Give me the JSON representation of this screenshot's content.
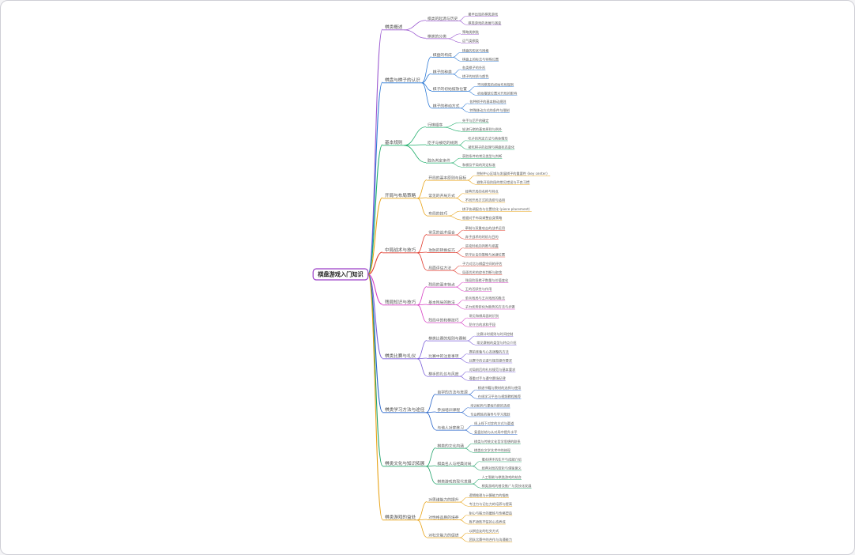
{
  "root": {
    "label": "棋盘游戏入门知识"
  },
  "branches": [
    {
      "label": "棋类概述",
      "color": "#9b59d0",
      "children": [
        {
          "label": "棋类的起源与历史",
          "leaves": [
            "最早出现的棋类游戏",
            "棋类游戏的发展与演变"
          ]
        },
        {
          "label": "棋类的分类",
          "leaves": [
            "策略类棋类",
            "运气类棋类"
          ]
        }
      ]
    },
    {
      "label": "棋盘与棋子的认识",
      "color": "#2f7bd6",
      "children": [
        {
          "label": "棋盘的构成",
          "leaves": [
            "棋盘的形状与网格",
            "棋盘上的标志与特殊位置"
          ]
        },
        {
          "label": "棋子的种类",
          "leaves": [
            "各类棋子的外形",
            "棋子的材质与颜色"
          ]
        },
        {
          "label": "棋子的初始摆放位置",
          "leaves": [
            "不同棋类的初始布局规则",
            "初始摆放位置对开局的影响"
          ]
        },
        {
          "label": "棋子的移动方式",
          "leaves": [
            "各种棋子的基本移动规则",
            "特殊移动方式的条件与限制"
          ]
        }
      ]
    },
    {
      "label": "基本规则",
      "color": "#1fae6b",
      "children": [
        {
          "label": "行棋顺序",
          "leaves": [
            "先手与后手的确定",
            "轮流行棋的基本原则与例外"
          ]
        },
        {
          "label": "吃子与被吃的规则",
          "leaves": [
            "吃子的判定方法与具体情形",
            "被吃棋子的处理与棋盘状态变化"
          ]
        },
        {
          "label": "胜负判定条件",
          "leaves": [
            "获胜条件的常见类型与判断",
            "和棋及平局的判定标准"
          ]
        }
      ]
    },
    {
      "label": "开局与布局策略",
      "color": "#e8a317",
      "children": [
        {
          "label": "开局的基本原则与目标",
          "leaves": [
            "控制中心区域与发展棋子的重要性 (key center)",
            "避免开局阶段的常见错误与不良习惯"
          ]
        },
        {
          "label": "常见的开局方式",
          "leaves": [
            "经典开局的名称与特点",
            "不同开局方式的选择与适用"
          ]
        },
        {
          "label": "布局的技巧",
          "leaves": [
            "棋子协调配合与位置优化 (piece placement)",
            "根据对手布局调整自身策略"
          ]
        }
      ]
    },
    {
      "label": "中局战术与技巧",
      "color": "#e0392b",
      "children": [
        {
          "label": "常见的战术组合",
          "leaves": [
            "牵制与双重攻击的战术运用",
            "弃子战术的时机与目的"
          ]
        },
        {
          "label": "攻防的转换技巧",
          "leaves": [
            "进攻时机的判断与把握",
            "防守反击的策略与关键位置"
          ]
        },
        {
          "label": "局面评估方法",
          "leaves": [
            "子力对比与棋盘空间的评估",
            "局面优劣的综合判断与取舍"
          ]
        }
      ]
    },
    {
      "label": "残局知识与技巧",
      "color": "#d63fc4",
      "children": [
        {
          "label": "残局的基本特点",
          "leaves": [
            "残局阶段棋子数量与价值变化",
            "王的活跃性与作用"
          ]
        },
        {
          "label": "基本残局的胜法",
          "leaves": [
            "单兵残局与王兵残局的胜法",
            "子力优势转化为胜势的方法与步骤"
          ]
        },
        {
          "label": "残局中的和棋技巧",
          "leaves": [
            "常见和棋局面的识别",
            "防守方的求和手段"
          ]
        }
      ]
    },
    {
      "label": "棋类比赛与礼仪",
      "color": "#7b5fd9",
      "children": [
        {
          "label": "棋类比赛的规则与赛制",
          "leaves": [
            "比赛计时规则与时间控制",
            "常见赛制的类型与特点介绍"
          ]
        },
        {
          "label": "比赛中的注意事项",
          "leaves": [
            "赛前准备与心态调整的方法",
            "比赛中的记谱与规范操作要求"
          ]
        },
        {
          "label": "棋手的礼仪与风度",
          "leaves": [
            "对局前后的礼仪规范与基本要求",
            "尊重对手与遵守赛场纪律"
          ]
        }
      ]
    },
    {
      "label": "棋类学习方法与途径",
      "color": "#2563c9",
      "children": [
        {
          "label": "自学的方法与资源",
          "leaves": [
            "棋谱书籍与教材的选择与使用",
            "在线学习平台与视频教程推荐"
          ]
        },
        {
          "label": "参加培训课程",
          "leaves": [
            "培训机构与课程内容的选择",
            "专业教练的指导与学习规划"
          ]
        },
        {
          "label": "与他人对弈练习",
          "leaves": [
            "线上线下对弈的方式与渠道",
            "复盘总结与从对局中提升水平"
          ]
        }
      ]
    },
    {
      "label": "棋类文化与知识拓展",
      "color": "#22a36b",
      "children": [
        {
          "label": "棋类的文化内涵",
          "leaves": [
            "棋类与传统文化哲学思想的联系",
            "棋类在文学艺术中的体现"
          ]
        },
        {
          "label": "棋类名人与经典对局",
          "leaves": [
            "著名棋手的生平与成就介绍",
            "经典对局的赏析与借鉴意义"
          ]
        },
        {
          "label": "棋类游戏的现代发展",
          "leaves": [
            "人工智能与棋类游戏的结合",
            "棋类游戏的普及推广与竞技化发展"
          ]
        }
      ]
    },
    {
      "label": "棋类游戏的益处",
      "color": "#e8a317",
      "children": [
        {
          "label": "对思维能力的提升",
          "leaves": [
            "逻辑推理与计算能力的锻炼",
            "专注力与记忆力的培养与提高"
          ]
        },
        {
          "label": "对性格品质的培养",
          "leaves": [
            "耐心与毅力的磨练与性格塑造",
            "胜不骄败不馁的心态养成"
          ]
        },
        {
          "label": "对社交能力的促进",
          "leaves": [
            "以棋会友的社交方式",
            "团队比赛中的合作与沟通能力"
          ]
        }
      ]
    }
  ]
}
